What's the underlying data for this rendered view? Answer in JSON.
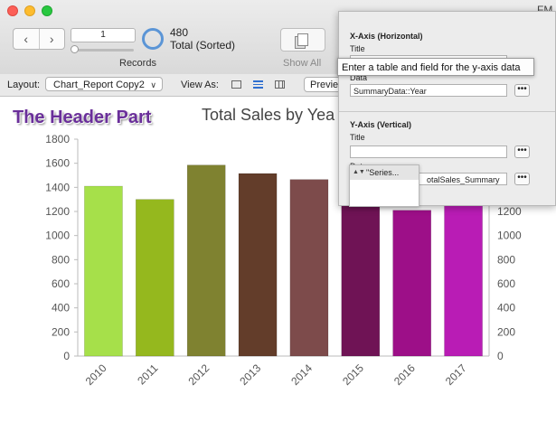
{
  "window": {
    "corner_label": "FM"
  },
  "toolbar": {
    "record_number": "1",
    "record_count": "480",
    "record_status": "Total (Sorted)",
    "records_label": "Records",
    "show_all_label": "Show All"
  },
  "layout_bar": {
    "layout_label": "Layout:",
    "layout_value": "Chart_Report Copy2",
    "view_as_label": "View As:",
    "preview_label": "Previe"
  },
  "header_part_label": "The Header Part",
  "chart_panel": {
    "x_axis_title": "X-Axis (Horizontal)",
    "x_title_label": "Title",
    "x_title_value": "",
    "x_data_label": "Data",
    "x_data_value": "SummaryData::Year",
    "y_axis_title": "Y-Axis (Vertical)",
    "y_title_label": "Title",
    "y_title_value": "",
    "y_data_label": "Data",
    "y_data_value": "otalSales_Summary",
    "dots_label": "•••",
    "tooltip": "Enter a table and field for the y-axis data",
    "series_popup_label": "\"Series...",
    "series_arrows": "▲▼"
  },
  "chart_data": {
    "type": "bar",
    "title": "Total Sales by Yea",
    "categories": [
      "2010",
      "2011",
      "2012",
      "2013",
      "2014",
      "2015",
      "2016",
      "2017"
    ],
    "values": [
      1410,
      1300,
      1585,
      1515,
      1465,
      1260,
      1210,
      1280
    ],
    "colors": [
      "#a6e04a",
      "#95b81e",
      "#7f8230",
      "#633d2a",
      "#7d4b4b",
      "#6f1355",
      "#9d0f88",
      "#b91cb5"
    ],
    "ylim": [
      0,
      1800
    ],
    "yticks": [
      0,
      200,
      400,
      600,
      800,
      1000,
      1200,
      1400,
      1600,
      1800
    ],
    "right_axis_ticks_visible": [
      0,
      200,
      400,
      600,
      800,
      1000,
      1200
    ],
    "grid": false,
    "legend": "none"
  }
}
